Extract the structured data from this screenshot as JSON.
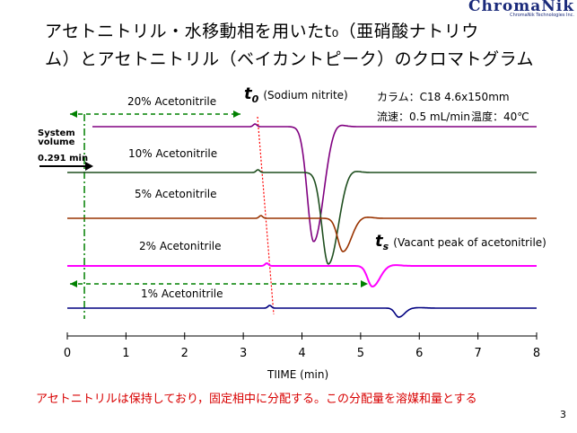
{
  "title": {
    "line1": "アセトニトリル・水移動相を用いたt₀（亜硝酸ナトリウ",
    "line2": "ム）とアセトニトリル（ベイカントピーク）のクロマトグラム"
  },
  "logo": {
    "text": "ChromaNik",
    "subtext": "ChromaNik Technologies Inc."
  },
  "conditions": {
    "column": "カラム：C18  4.6x150mm",
    "flow": "流速：0.5 mL/min",
    "temp": "温度：40℃"
  },
  "annotations": {
    "t0_symbol": "t",
    "t0_sub": "0",
    "t0_text": "(Sodium nitrite)",
    "ts_symbol": "t",
    "ts_sub": "s",
    "ts_text": "(Vacant peak of acetonitrile)",
    "system_volume_line1": "System",
    "system_volume_line2": "volume",
    "system_volume_value": "0.291 min"
  },
  "footer": "アセトニトリルは保持しており，固定相中に分配する。この分配量を溶媒和量とする",
  "page_number": "3",
  "colors": {
    "s20": "#800080",
    "s10": "#1f4f1f",
    "s5": "#993300",
    "s2": "#ff00ff",
    "s1": "#000080",
    "footer": "#d80000",
    "guides": "#008000",
    "t0_line": "#ff0000"
  },
  "chart_data": {
    "type": "line",
    "xlabel": "TIIME (min)",
    "xlim": [
      0,
      8
    ],
    "x_ticks": [
      "0",
      "1",
      "2",
      "3",
      "4",
      "5",
      "6",
      "7",
      "8"
    ],
    "system_volume_min": 0.291,
    "series": [
      {
        "name": "20% Acetonitrile",
        "t0": 3.2,
        "vacant_peak_time": 4.2,
        "peak_direction": "negative"
      },
      {
        "name": "10%  Acetonitrile",
        "t0": 3.25,
        "vacant_peak_time": 4.45,
        "peak_direction": "negative"
      },
      {
        "name": "5% Acetonitrile",
        "t0": 3.3,
        "vacant_peak_time": 4.7,
        "peak_direction": "negative"
      },
      {
        "name": "2% Acetonitrile",
        "t0": 3.4,
        "vacant_peak_time": 5.2,
        "peak_direction": "negative"
      },
      {
        "name": "1% Acetonitrile",
        "t0": 3.45,
        "vacant_peak_time": 5.65,
        "peak_direction": "negative"
      }
    ]
  }
}
